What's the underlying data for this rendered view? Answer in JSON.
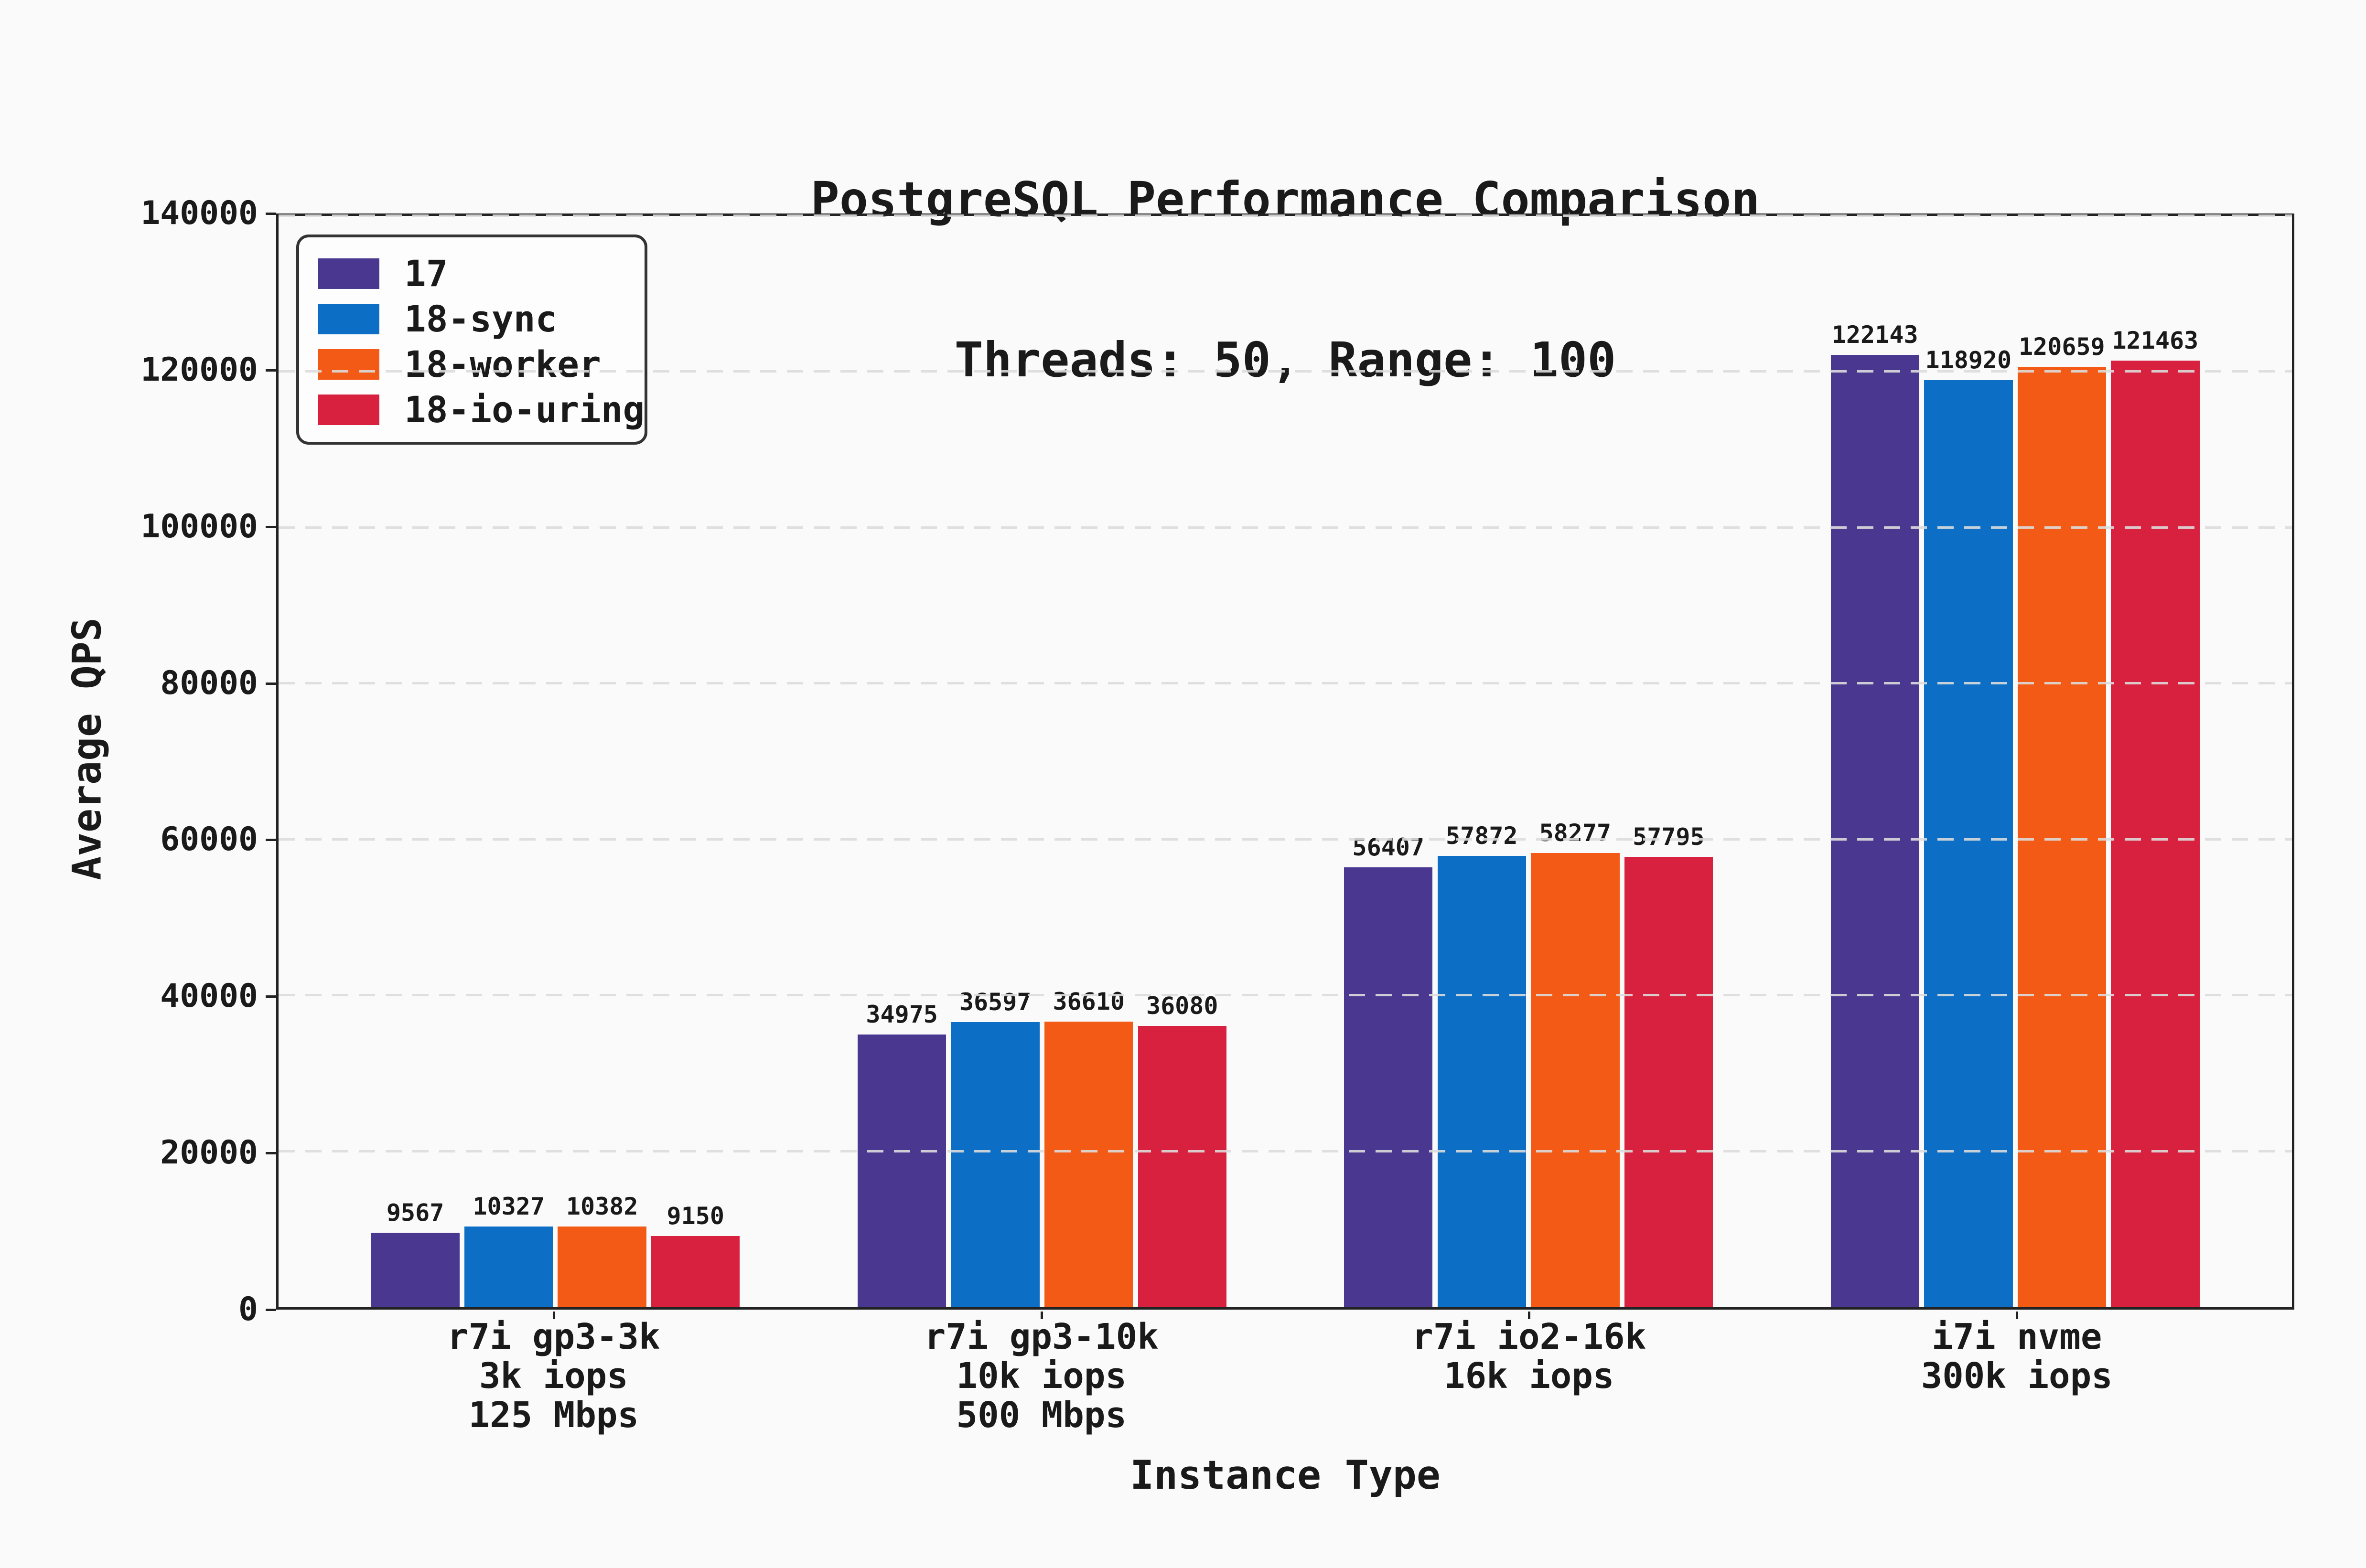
{
  "page": {
    "background": "#FAFAFA"
  },
  "title": {
    "line1": "PostgreSQL Performance Comparison",
    "line2": "Threads: 50, Range: 100"
  },
  "colors": {
    "text": "#1A1A1A",
    "spine": "#222222",
    "grid": "#DCDCDC",
    "legend_bg": "#FDFDFD",
    "legend_border": "#333333"
  },
  "chart_data": {
    "type": "bar",
    "title": "PostgreSQL Performance Comparison",
    "subtitle": "Threads: 50, Range: 100",
    "xlabel": "Instance Type",
    "ylabel": "Average QPS",
    "ylim": [
      0,
      140000
    ],
    "yticks": [
      0,
      20000,
      40000,
      60000,
      80000,
      100000,
      120000,
      140000
    ],
    "grid": "horizontal dashed, drawn above bars",
    "legend_position": "upper left",
    "bar_value_labels": true,
    "categories": [
      [
        "r7i gp3-3k",
        "3k iops",
        "125 Mbps"
      ],
      [
        "r7i gp3-10k",
        "10k iops",
        "500 Mbps"
      ],
      [
        "r7i io2-16k",
        "16k iops"
      ],
      [
        "i7i nvme",
        "300k iops"
      ]
    ],
    "series": [
      {
        "name": "17",
        "color": "#4A3890",
        "values": [
          9567,
          34975,
          56407,
          122143
        ]
      },
      {
        "name": "18-sync",
        "color": "#0C6EC4",
        "values": [
          10327,
          36597,
          57872,
          118920
        ]
      },
      {
        "name": "18-worker",
        "color": "#F35A16",
        "values": [
          10382,
          36610,
          58277,
          120659
        ]
      },
      {
        "name": "18-io-uring",
        "color": "#D8213F",
        "values": [
          9150,
          36080,
          57795,
          121463
        ]
      }
    ]
  }
}
